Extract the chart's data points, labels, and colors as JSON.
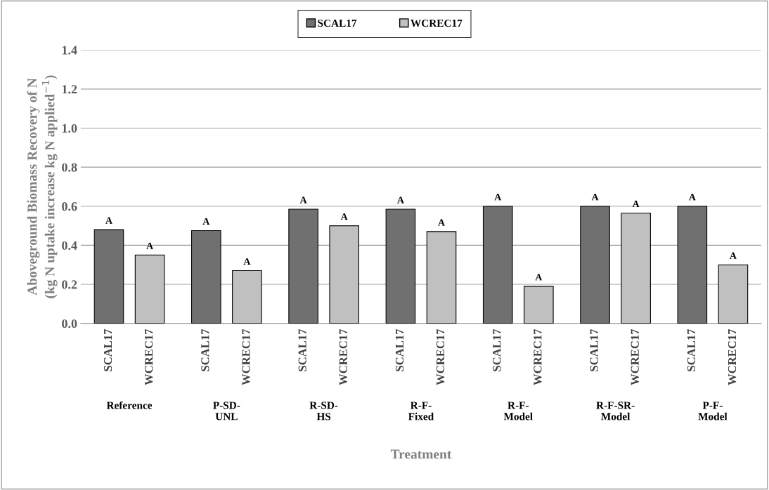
{
  "chart_data": {
    "type": "bar",
    "categories": [
      "Reference",
      "P-SD-\nUNL",
      "R-SD-\nHS",
      "R-F-\nFixed",
      "R-F-\nModel",
      "R-F-SR-\nModel",
      "P-F-\nModel"
    ],
    "series": [
      {
        "name": "SCAL17",
        "color": "#707070",
        "values": [
          0.48,
          0.475,
          0.585,
          0.585,
          0.6,
          0.6,
          0.6
        ],
        "value_labels": [
          "A",
          "A",
          "A",
          "A",
          "A",
          "A",
          "A"
        ]
      },
      {
        "name": "WCREC17",
        "color": "#c0c0c0",
        "values": [
          0.35,
          0.27,
          0.5,
          0.47,
          0.19,
          0.565,
          0.3
        ],
        "value_labels": [
          "A",
          "A",
          "A",
          "A",
          "A",
          "A",
          "A"
        ]
      }
    ],
    "xlabel": "Treatment",
    "ylabel": "Aboveground Biomass Recovery of N\n(kg N uptake increase kg N applied$^{−1}$)",
    "ylim": [
      0.0,
      1.4
    ],
    "yticks": [
      {
        "value": 0,
        "label": "0.0"
      },
      0.2,
      0.4,
      0.6,
      0.8,
      {
        "value": 1,
        "label": "1.0"
      },
      1.2,
      1.4
    ],
    "grid": "y",
    "legend": "top"
  }
}
